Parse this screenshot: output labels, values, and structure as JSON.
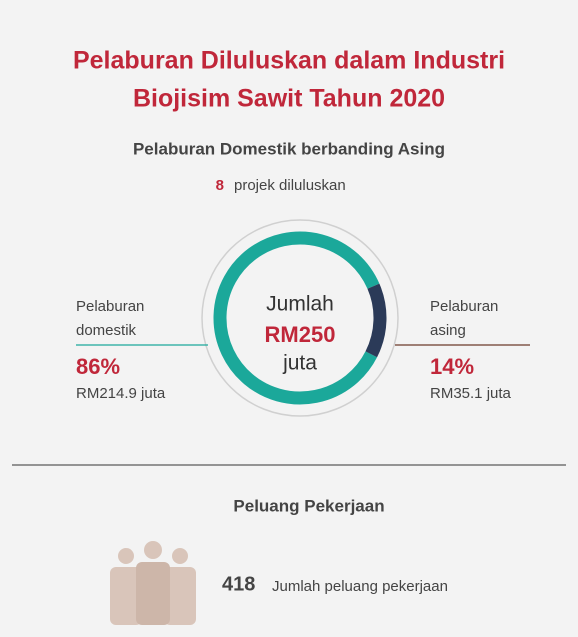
{
  "chart_data": {
    "type": "pie",
    "title": [
      "Pelaburan Diluluskan dalam Industri",
      "Biojisim Sawit Tahun 2020"
    ],
    "subtitle": "Pelaburan Domestik berbanding Asing",
    "projects": {
      "count": 8,
      "label": "projek diluluskan"
    },
    "categories": [
      "Pelaburan domestik",
      "Pelaburan asing"
    ],
    "values": [
      86,
      14
    ],
    "value_labels": [
      "86%",
      "14%"
    ],
    "amounts": [
      "RM214.9 juta",
      "RM35.1 juta"
    ],
    "colors": [
      "#1ba89a",
      "#2b3a58"
    ],
    "center": [
      "Jumlah",
      "RM250",
      "juta"
    ],
    "jobs": {
      "title": "Peluang Pekerjaan",
      "count": 418,
      "label": "Jumlah peluang pekerjaan"
    }
  }
}
